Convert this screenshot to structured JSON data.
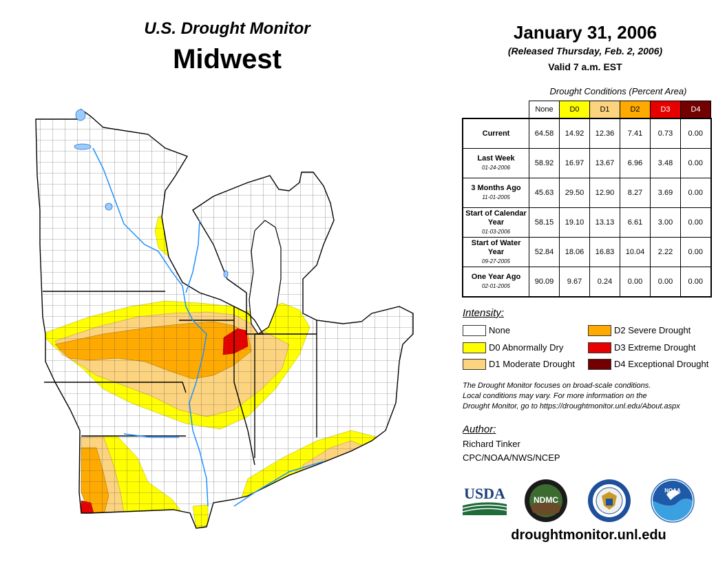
{
  "header": {
    "subtitle": "U.S. Drought Monitor",
    "region": "Midwest",
    "date": "January 31, 2006",
    "released": "(Released Thursday, Feb. 2, 2006)",
    "valid": "Valid 7 a.m. EST"
  },
  "table": {
    "caption": "Drought Conditions (Percent Area)",
    "columns": [
      {
        "label": "None",
        "color": "#ffffff",
        "text_color": "#000000"
      },
      {
        "label": "D0",
        "color": "#ffff00",
        "text_color": "#000000"
      },
      {
        "label": "D1",
        "color": "#fcd37f",
        "text_color": "#000000"
      },
      {
        "label": "D2",
        "color": "#ffaa00",
        "text_color": "#000000"
      },
      {
        "label": "D3",
        "color": "#e60000",
        "text_color": "#ffffff"
      },
      {
        "label": "D4",
        "color": "#730000",
        "text_color": "#ffffff"
      }
    ],
    "rows": [
      {
        "label": "Current",
        "date": "",
        "values": [
          "64.58",
          "14.92",
          "12.36",
          "7.41",
          "0.73",
          "0.00"
        ]
      },
      {
        "label": "Last Week",
        "date": "01-24-2006",
        "values": [
          "58.92",
          "16.97",
          "13.67",
          "6.96",
          "3.48",
          "0.00"
        ]
      },
      {
        "label": "3 Months Ago",
        "date": "11-01-2005",
        "values": [
          "45.63",
          "29.50",
          "12.90",
          "8.27",
          "3.69",
          "0.00"
        ]
      },
      {
        "label": "Start of Calendar Year",
        "date": "01-03-2006",
        "values": [
          "58.15",
          "19.10",
          "13.13",
          "6.61",
          "3.00",
          "0.00"
        ]
      },
      {
        "label": "Start of Water Year",
        "date": "09-27-2005",
        "values": [
          "52.84",
          "18.06",
          "16.83",
          "10.04",
          "2.22",
          "0.00"
        ]
      },
      {
        "label": "One Year Ago",
        "date": "02-01-2005",
        "values": [
          "90.09",
          "9.67",
          "0.24",
          "0.00",
          "0.00",
          "0.00"
        ]
      }
    ]
  },
  "legend": {
    "title": "Intensity:",
    "items": [
      {
        "label": "None",
        "color": "#ffffff"
      },
      {
        "label": "D0 Abnormally Dry",
        "color": "#ffff00"
      },
      {
        "label": "D1 Moderate Drought",
        "color": "#fcd37f"
      },
      {
        "label": "D2 Severe Drought",
        "color": "#ffaa00"
      },
      {
        "label": "D3 Extreme Drought",
        "color": "#e60000"
      },
      {
        "label": "D4 Exceptional Drought",
        "color": "#730000"
      }
    ]
  },
  "note": {
    "lines": [
      "The Drought Monitor focuses on broad-scale conditions.",
      "Local conditions may vary. For more information on the",
      "Drought Monitor, go to https://droughtmonitor.unl.edu/About.aspx"
    ]
  },
  "author": {
    "heading": "Author:",
    "name": "Richard Tinker",
    "org": "CPC/NOAA/NWS/NCEP"
  },
  "logos": {
    "usda": "USDA",
    "ndmc": "NDMC",
    "noaa": "NOAA"
  },
  "footer": {
    "url": "droughtmonitor.unl.edu"
  },
  "colors": {
    "water": "#99ccff",
    "river": "#1e90ff",
    "lake": "#ffffff"
  }
}
